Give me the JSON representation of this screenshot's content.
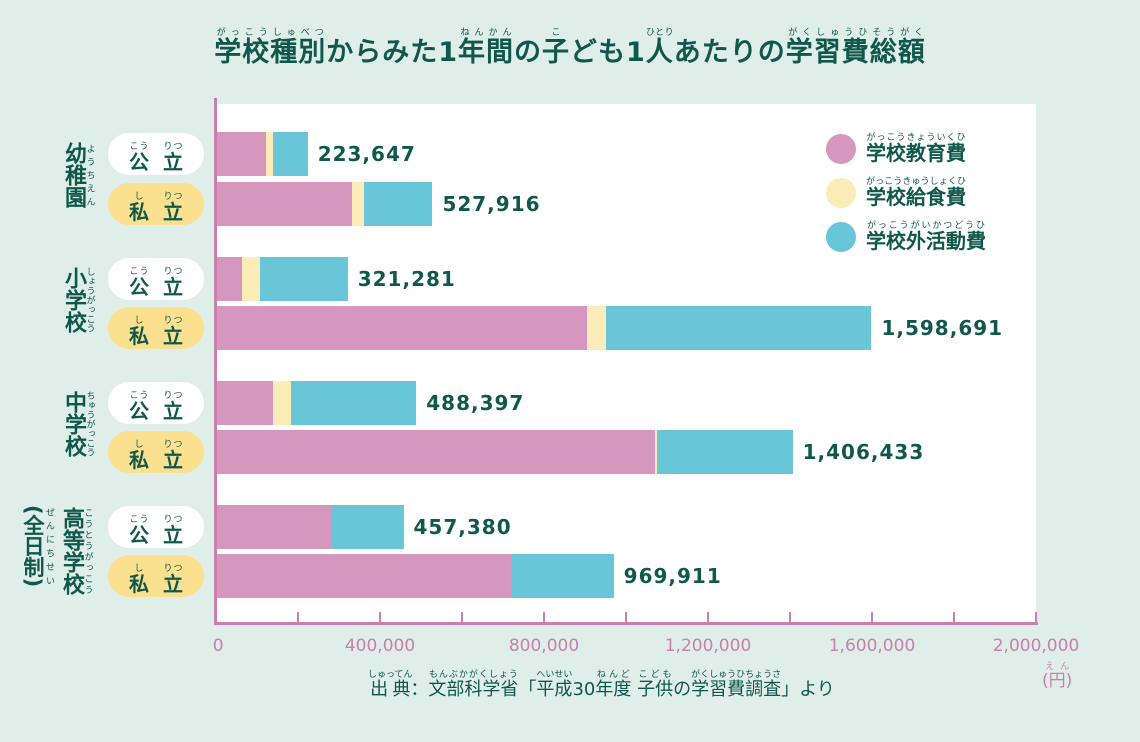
{
  "title": [
    {
      "t": "学校種別",
      "r": "がっこうしゅべつ"
    },
    {
      "t": "からみた1",
      "r": ""
    },
    {
      "t": "年間",
      "r": "ねんかん"
    },
    {
      "t": "の",
      "r": ""
    },
    {
      "t": "子",
      "r": "こ"
    },
    {
      "t": "ども1",
      "r": ""
    },
    {
      "t": "人",
      "r": "ひとり"
    },
    {
      "t": "あたりの",
      "r": ""
    },
    {
      "t": "学習費総額",
      "r": "がくしゅうひそうがく"
    }
  ],
  "source": [
    {
      "t": "出典",
      "r": "しゅってん"
    },
    {
      "t": "：",
      "r": ""
    },
    {
      "t": "文部科学省",
      "r": "もんぶかがくしょう"
    },
    {
      "t": "「",
      "r": ""
    },
    {
      "t": "平成",
      "r": "へいせい"
    },
    {
      "t": "30",
      "r": ""
    },
    {
      "t": "年度",
      "r": "ねんど"
    },
    {
      "t": " ",
      "r": ""
    },
    {
      "t": "子供",
      "r": "こども"
    },
    {
      "t": "の",
      "r": ""
    },
    {
      "t": "学習費調査",
      "r": "がくしゅうひちょうさ"
    },
    {
      "t": "」より",
      "r": ""
    }
  ],
  "unit": {
    "t": "(円)",
    "r": "えん"
  },
  "pills": {
    "public": {
      "t1": "公",
      "r1": "こう",
      "t2": "立",
      "r2": "りつ"
    },
    "private": {
      "t1": "私",
      "r1": "し",
      "t2": "立",
      "r2": "りつ"
    }
  },
  "categories": [
    {
      "t": "幼稚園",
      "r": "ようちえん",
      "sub": ""
    },
    {
      "t": "小学校",
      "r": "しょうがっこう",
      "sub": ""
    },
    {
      "t": "中学校",
      "r": "ちゅうがっこう",
      "sub": ""
    },
    {
      "t": "高等学校",
      "r": "こうとうがっこう",
      "sub": "(全日制)",
      "subr": "ぜんにちせい"
    }
  ],
  "colors": {
    "background": "#dfeee9",
    "text": "#11584c",
    "axis": "#c980ae",
    "series": [
      "#d597bd",
      "#fcecb8",
      "#68c6d8"
    ],
    "public_pill": "#ffffff",
    "private_pill": "#fbe08f"
  },
  "chart_data": {
    "type": "bar",
    "orientation": "horizontal",
    "stacked": true,
    "title": "学校種別からみた1年間の子ども1人あたりの学習費総額",
    "xlabel": "(円)",
    "xlim": [
      0,
      2000000
    ],
    "xticks": [
      "0",
      "400,000",
      "800,000",
      "1,200,000",
      "1,600,000",
      "2,000,000"
    ],
    "xtick_values": [
      0,
      400000,
      800000,
      1200000,
      1600000,
      2000000
    ],
    "grid": false,
    "legend": "top-right",
    "series_names": [
      {
        "t": "学校教育費",
        "r": "がっこうきょういくひ"
      },
      {
        "t": "学校給食費",
        "r": "がっこうきゅうしょくひ"
      },
      {
        "t": "学校外活動費",
        "r": "がっこうがいかつどうひ"
      }
    ],
    "rows": [
      {
        "category": "幼稚園",
        "type": "公立",
        "values": [
          120738,
          19014,
          83895
        ],
        "total": "223,647"
      },
      {
        "category": "幼稚園",
        "type": "私立",
        "values": [
          331378,
          29917,
          166621
        ],
        "total": "527,916"
      },
      {
        "category": "小学校",
        "type": "公立",
        "values": [
          63102,
          43728,
          214451
        ],
        "total": "321,281"
      },
      {
        "category": "小学校",
        "type": "私立",
        "values": [
          904164,
          47638,
          646889
        ],
        "total": "1,598,691"
      },
      {
        "category": "中学校",
        "type": "公立",
        "values": [
          138961,
          42945,
          306491
        ],
        "total": "488,397"
      },
      {
        "category": "中学校",
        "type": "私立",
        "values": [
          1071438,
          3731,
          331264
        ],
        "total": "1,406,433"
      },
      {
        "category": "高等学校(全日制)",
        "type": "公立",
        "values": [
          280487,
          0,
          176893
        ],
        "total": "457,380"
      },
      {
        "category": "高等学校(全日制)",
        "type": "私立",
        "values": [
          719051,
          0,
          250860
        ],
        "total": "969,911"
      }
    ]
  }
}
